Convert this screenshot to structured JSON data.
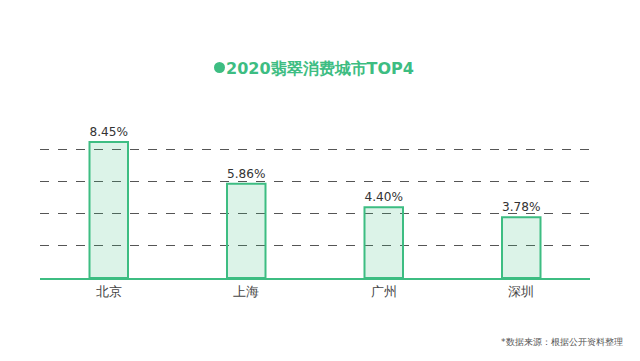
{
  "chart_data": {
    "type": "bar",
    "title": "2020翡翠消费城市TOP4",
    "categories": [
      "北京",
      "上海",
      "广州",
      "深圳"
    ],
    "values": [
      8.45,
      5.86,
      4.4,
      3.78
    ],
    "value_labels": [
      "8.45%",
      "5.86%",
      "4.40%",
      "3.78%"
    ],
    "color": "#3dbd82",
    "ylim": [
      0,
      10
    ],
    "yticks": [
      0,
      2,
      4,
      6,
      8,
      10
    ],
    "grid": true,
    "data_labels": true,
    "tick_labels": "x",
    "annotations": [
      "*数据来源：根据公开资料整理"
    ]
  }
}
